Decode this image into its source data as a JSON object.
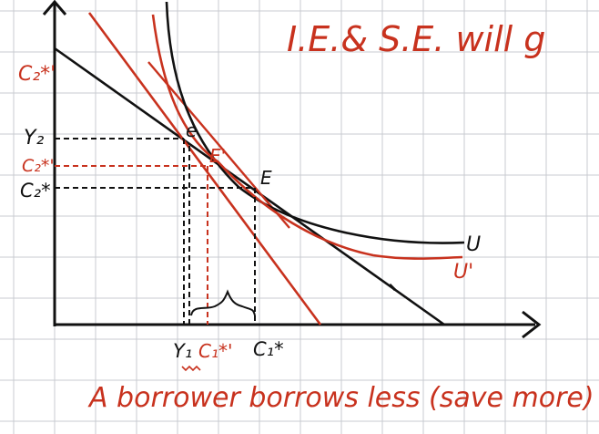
{
  "title": "I.E.& S.E. will g",
  "caption": "A borrower borrows less (save more)",
  "labels": {
    "c2_star_prime": "C₂*'",
    "y2": "Y₂",
    "c2_star_prime_mid": "C₂*'",
    "c2_star": "C₂*",
    "point_e": "e",
    "point_e_prime": "E'",
    "point_E": "E",
    "curve_U": "U",
    "curve_U_prime": "U'",
    "y1": "Y₁",
    "c1_star_prime": "C₁*'",
    "c1_star": "C₁*"
  },
  "colors": {
    "black": "#111111",
    "red": "#c8321e",
    "grid": "#c9cbd0",
    "background": "#ffffff"
  }
}
